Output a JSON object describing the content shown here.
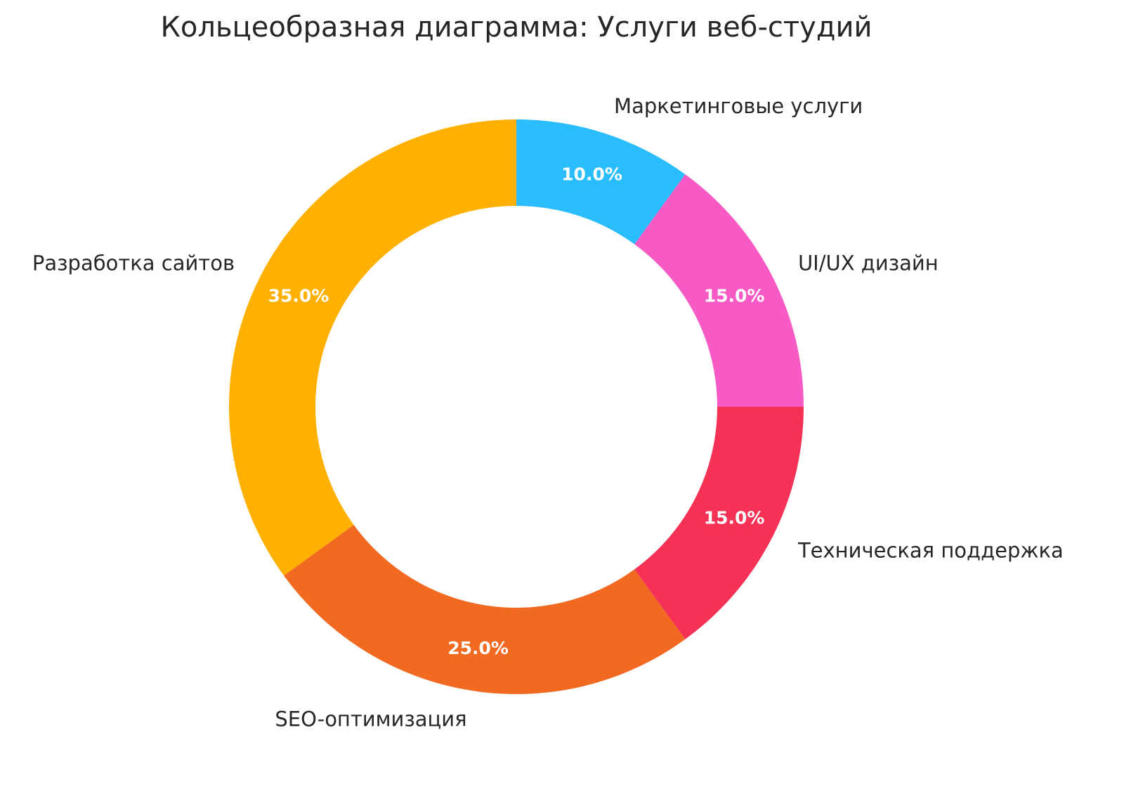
{
  "chart_data": {
    "type": "pie",
    "donut": true,
    "title": "Кольцеобразная диаграмма: Услуги веб-студий",
    "start_angle_deg": 90,
    "direction": "counterclockwise",
    "categories": [
      "Разработка сайтов",
      "SEO-оптимизация",
      "Техническая поддержка",
      "UI/UX дизайн",
      "Маркетинговые услуги"
    ],
    "values": [
      35,
      25,
      15,
      15,
      10
    ],
    "value_labels": [
      "35.0%",
      "25.0%",
      "15.0%",
      "15.0%",
      "10.0%"
    ],
    "colors": [
      "#FFB000",
      "#F26A21",
      "#F53256",
      "#F75AC4",
      "#29BDFD"
    ]
  }
}
